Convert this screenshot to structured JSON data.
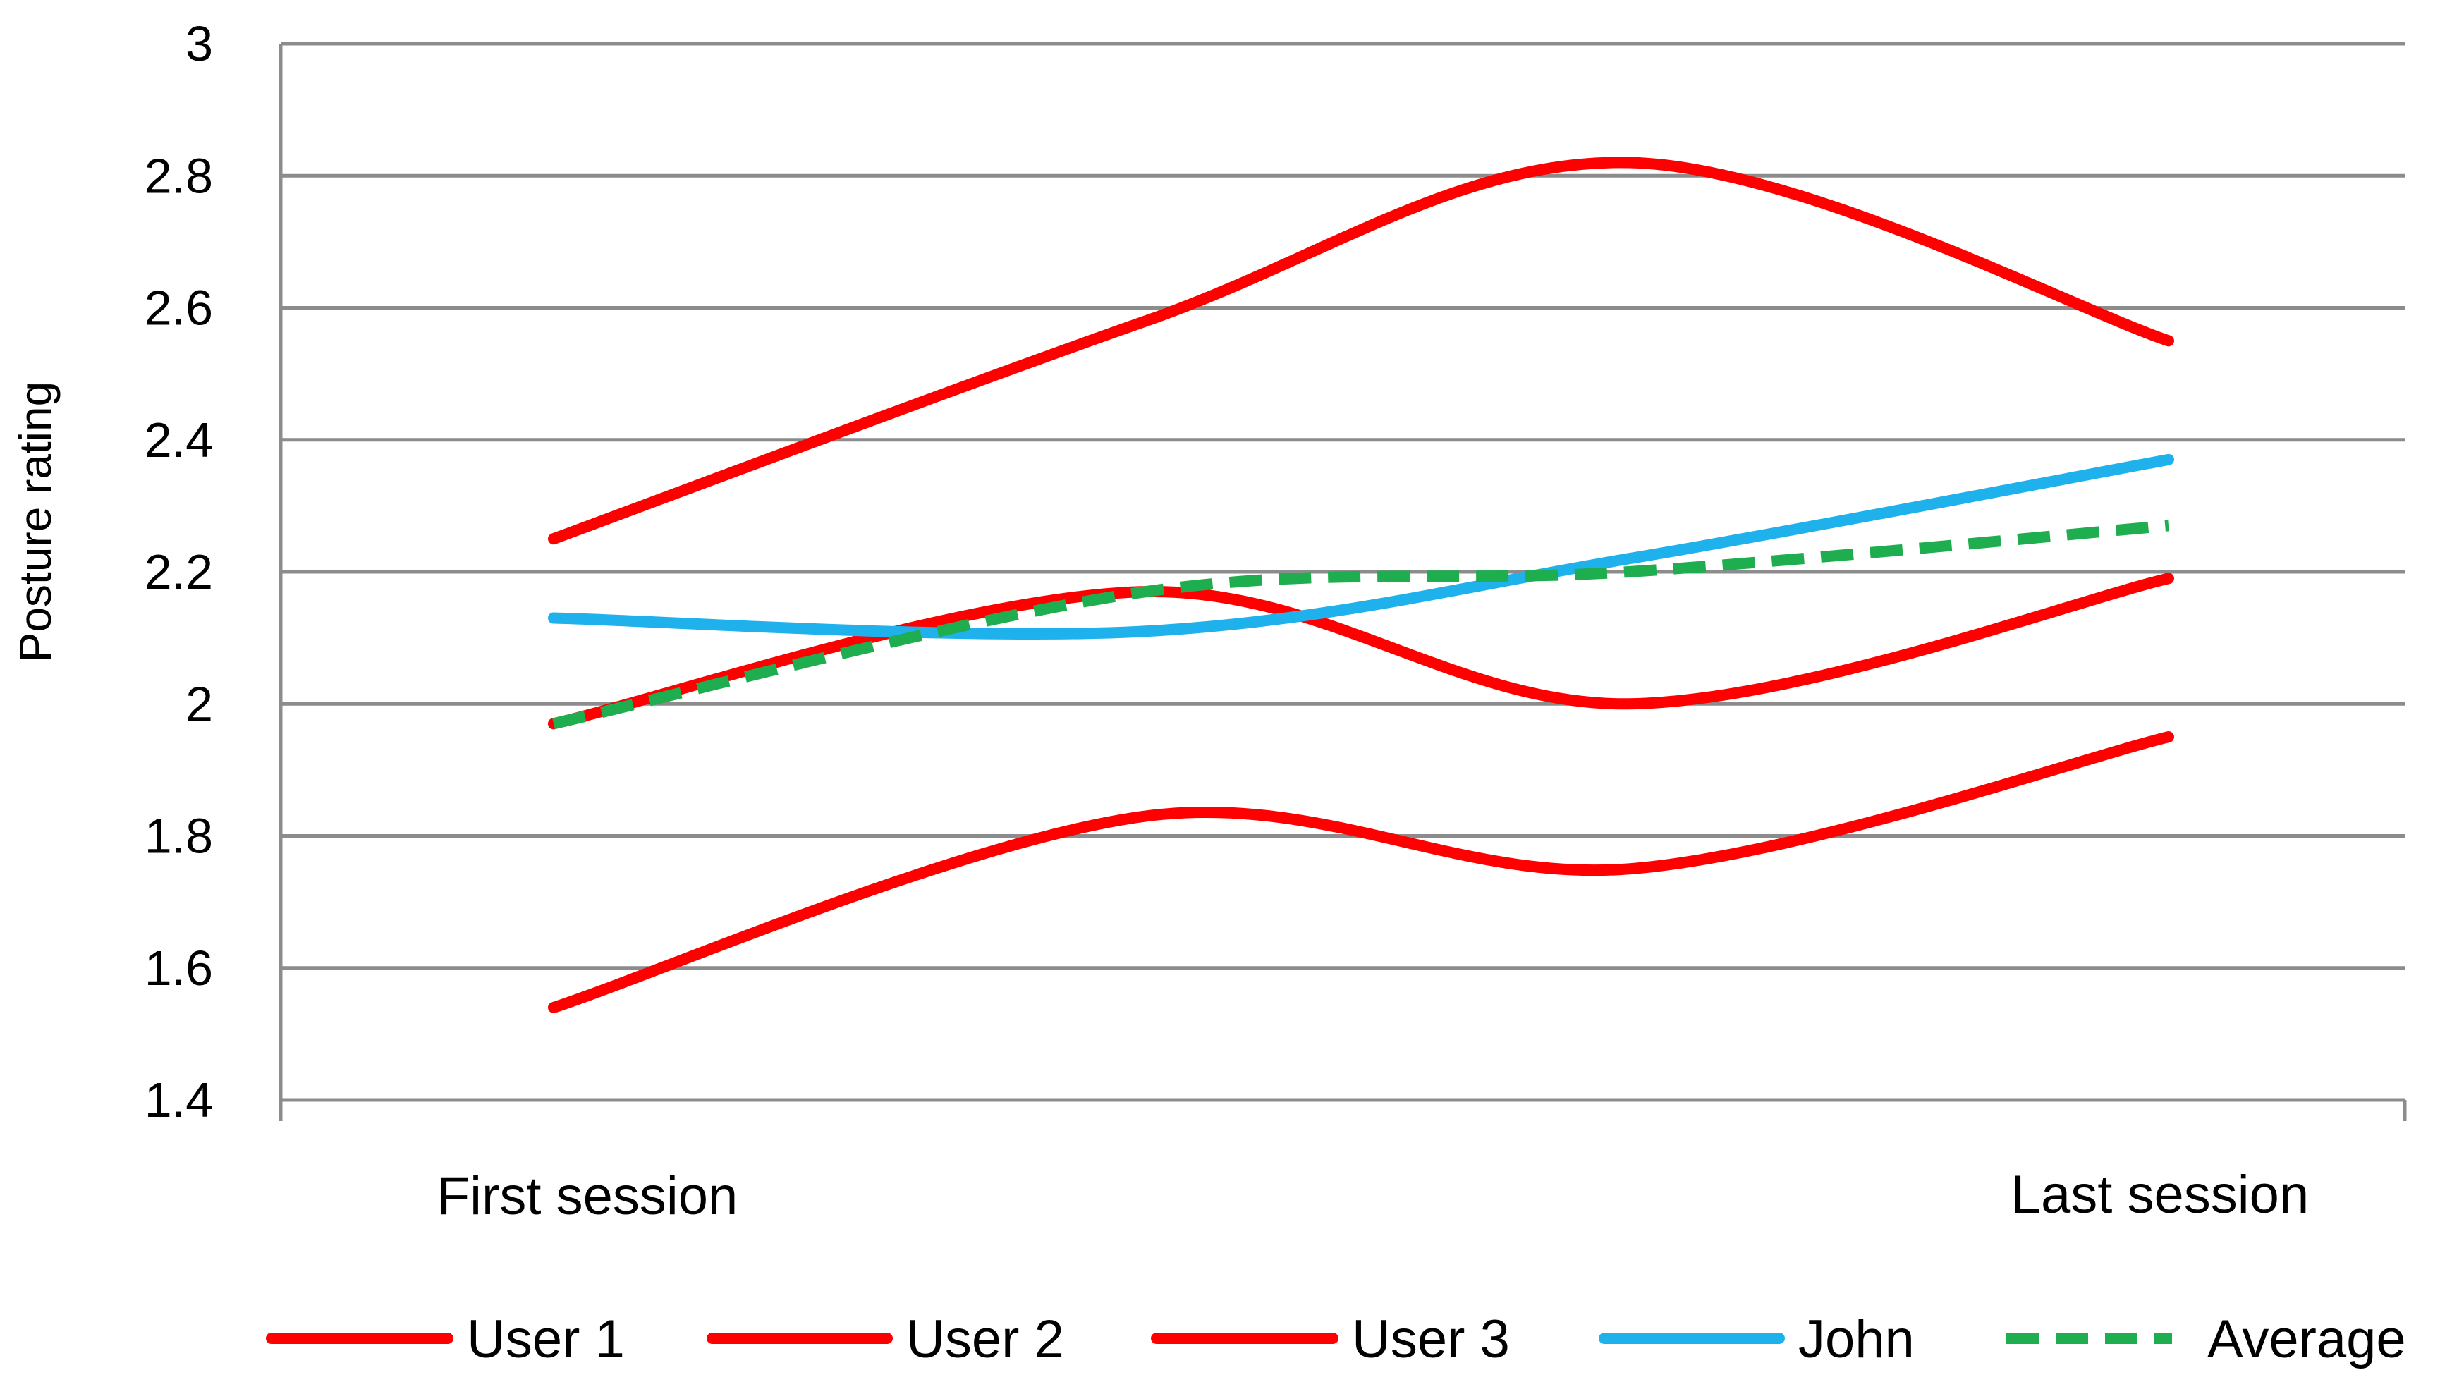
{
  "chart_data": {
    "type": "line",
    "categories": [
      "First session",
      "",
      "",
      "Last session"
    ],
    "x_tick_labels": [
      "First session",
      "Last session"
    ],
    "ylabel": "Posture rating",
    "xlabel": "",
    "title": "",
    "ylim": [
      1.4,
      3
    ],
    "yticks": [
      "1.4",
      "1.6",
      "1.8",
      "2",
      "2.2",
      "2.4",
      "2.6",
      "2.8",
      "3"
    ],
    "grid": true,
    "legend_position": "bottom",
    "series": [
      {
        "name": "User 1",
        "color": "#ff0000",
        "dash": "solid",
        "values": [
          2.25,
          2.58,
          2.82,
          2.55
        ]
      },
      {
        "name": "User 2",
        "color": "#ff0000",
        "dash": "solid",
        "values": [
          1.97,
          2.17,
          2.0,
          2.19
        ]
      },
      {
        "name": "User 3",
        "color": "#ff0000",
        "dash": "solid",
        "values": [
          1.54,
          1.83,
          1.75,
          1.95
        ]
      },
      {
        "name": "John",
        "color": "#1fb1ec",
        "dash": "solid",
        "values": [
          2.13,
          2.11,
          2.22,
          2.37
        ]
      },
      {
        "name": "Average",
        "color": "#1fae4f",
        "dash": "dashed",
        "values": [
          1.97,
          2.17,
          2.2,
          2.27
        ]
      }
    ]
  }
}
